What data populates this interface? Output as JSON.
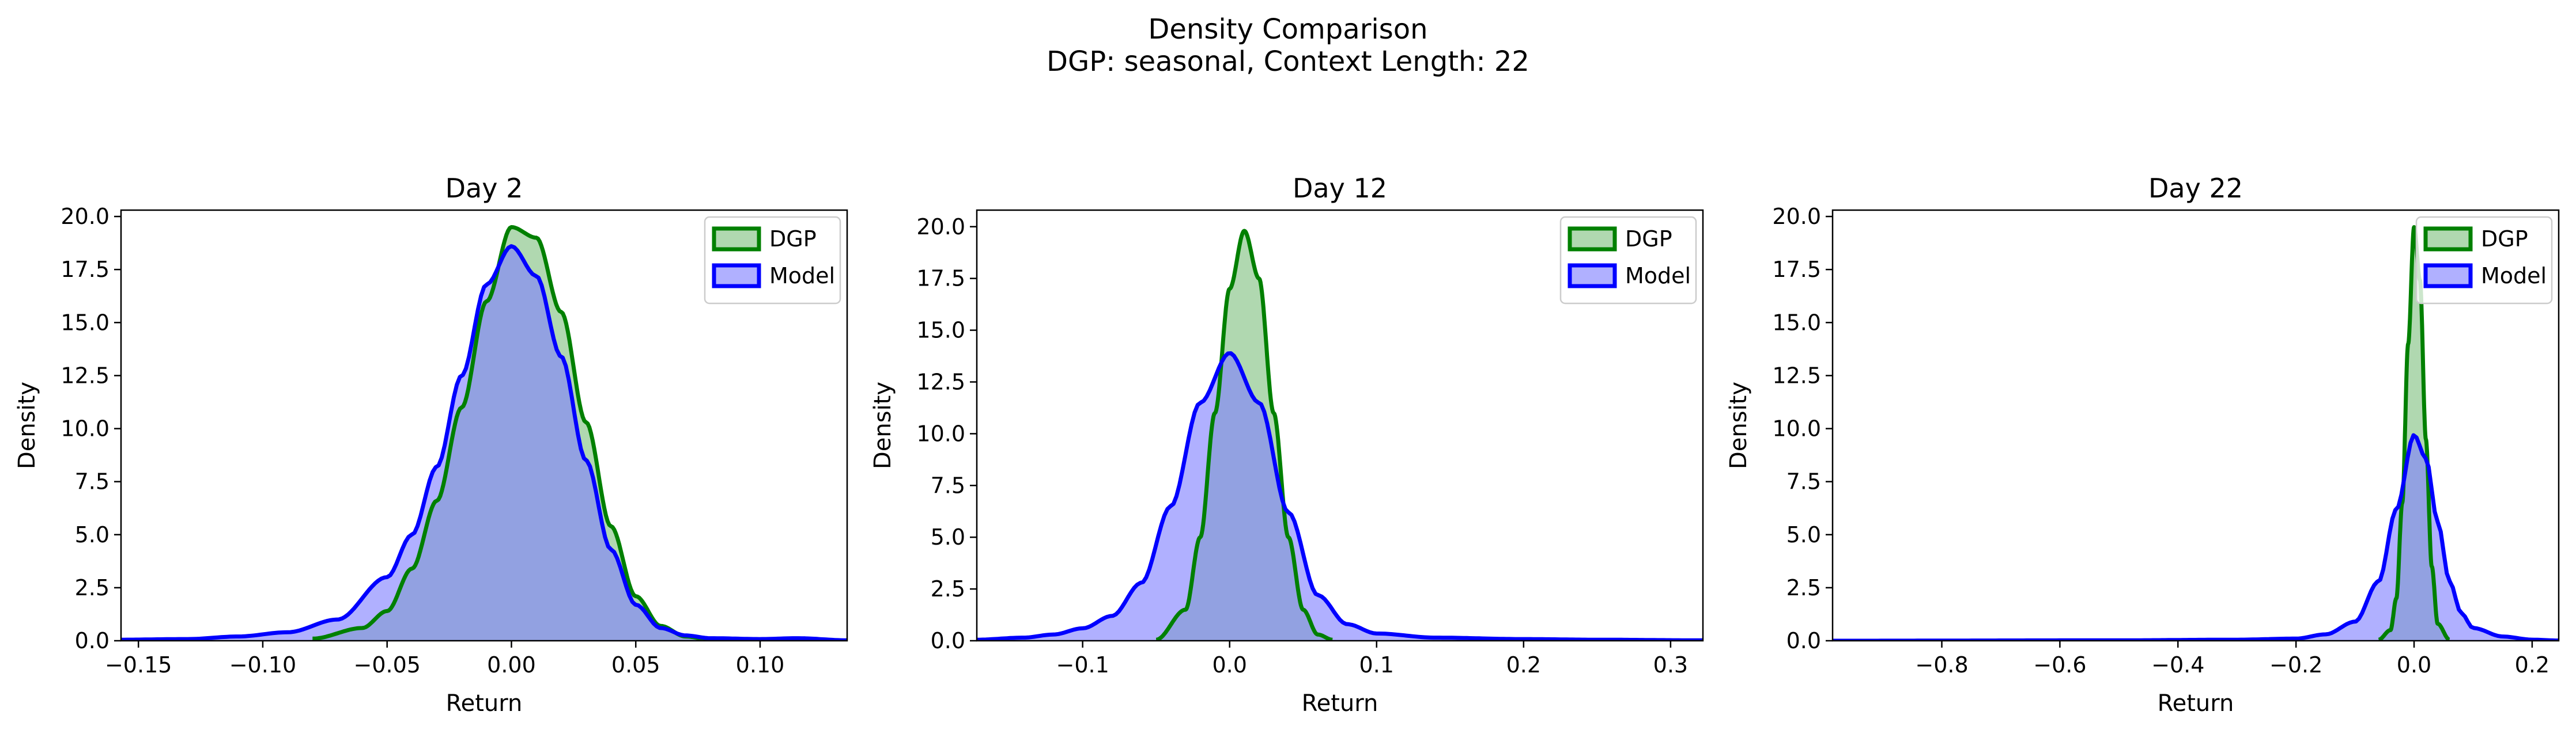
{
  "figure": {
    "title_line1": "Density Comparison",
    "title_line2": "DGP: seasonal, Context Length: 22"
  },
  "colors": {
    "dgp_line": "#008000",
    "dgp_fill": "#80c080",
    "model_line": "#0000ff",
    "model_fill": "#8080ff"
  },
  "chart_data": [
    {
      "type": "area",
      "title": "Day 2",
      "xlabel": "Return",
      "ylabel": "Density",
      "xlim": [
        -0.157,
        0.135
      ],
      "ylim": [
        0,
        20.3
      ],
      "xticks": [
        -0.15,
        -0.1,
        -0.05,
        0.0,
        0.05,
        0.1
      ],
      "xtick_labels": [
        "−0.15",
        "−0.10",
        "−0.05",
        "0.00",
        "0.05",
        "0.10"
      ],
      "yticks": [
        0,
        2.5,
        5,
        7.5,
        10,
        12.5,
        15,
        17.5,
        20
      ],
      "ytick_labels": [
        "0.0",
        "2.5",
        "5.0",
        "7.5",
        "10.0",
        "12.5",
        "15.0",
        "17.5",
        "20.0"
      ],
      "legend": "top-right",
      "series": [
        {
          "name": "DGP",
          "x": [
            -0.08,
            -0.06,
            -0.05,
            -0.04,
            -0.03,
            -0.02,
            -0.01,
            0.0,
            0.01,
            0.02,
            0.03,
            0.04,
            0.05,
            0.06,
            0.07,
            0.08
          ],
          "y": [
            0.1,
            0.6,
            1.4,
            3.4,
            6.6,
            11.0,
            16.0,
            19.5,
            19.0,
            15.5,
            10.3,
            5.4,
            2.1,
            0.7,
            0.2,
            0.05
          ]
        },
        {
          "name": "Model",
          "x": [
            -0.157,
            -0.13,
            -0.11,
            -0.09,
            -0.07,
            -0.05,
            -0.04,
            -0.03,
            -0.02,
            -0.01,
            0.0,
            0.01,
            0.02,
            0.03,
            0.04,
            0.05,
            0.06,
            0.07,
            0.08,
            0.1,
            0.115,
            0.135
          ],
          "y": [
            0.05,
            0.08,
            0.2,
            0.4,
            1.0,
            3.0,
            5.0,
            8.2,
            12.5,
            16.8,
            18.6,
            17.2,
            13.4,
            8.5,
            4.3,
            1.7,
            0.6,
            0.25,
            0.12,
            0.08,
            0.12,
            0.02
          ]
        }
      ]
    },
    {
      "type": "area",
      "title": "Day 12",
      "xlabel": "Return",
      "ylabel": "Density",
      "xlim": [
        -0.172,
        0.322
      ],
      "ylim": [
        0,
        20.8
      ],
      "xticks": [
        -0.1,
        0.0,
        0.1,
        0.2,
        0.3
      ],
      "xtick_labels": [
        "−0.1",
        "0.0",
        "0.1",
        "0.2",
        "0.3"
      ],
      "yticks": [
        0,
        2.5,
        5,
        7.5,
        10,
        12.5,
        15,
        17.5,
        20
      ],
      "ytick_labels": [
        "0.0",
        "2.5",
        "5.0",
        "7.5",
        "10.0",
        "12.5",
        "15.0",
        "17.5",
        "20.0"
      ],
      "legend": "top-right",
      "series": [
        {
          "name": "DGP",
          "x": [
            -0.05,
            -0.03,
            -0.02,
            -0.01,
            0.0,
            0.01,
            0.02,
            0.03,
            0.04,
            0.05,
            0.06,
            0.07
          ],
          "y": [
            0.05,
            1.5,
            5.0,
            11.0,
            17.0,
            19.8,
            17.5,
            11.0,
            5.0,
            1.5,
            0.3,
            0.05
          ]
        },
        {
          "name": "Model",
          "x": [
            -0.172,
            -0.14,
            -0.12,
            -0.1,
            -0.08,
            -0.06,
            -0.04,
            -0.02,
            0.0,
            0.02,
            0.04,
            0.06,
            0.08,
            0.1,
            0.14,
            0.2,
            0.25,
            0.322
          ],
          "y": [
            0.05,
            0.15,
            0.3,
            0.6,
            1.2,
            2.8,
            6.5,
            11.5,
            13.9,
            11.5,
            6.2,
            2.2,
            0.8,
            0.35,
            0.15,
            0.08,
            0.05,
            0.02
          ]
        }
      ]
    },
    {
      "type": "area",
      "title": "Day 22",
      "xlabel": "Return",
      "ylabel": "Density",
      "xlim": [
        -0.985,
        0.245
      ],
      "ylim": [
        0,
        20.3
      ],
      "xticks": [
        -0.8,
        -0.6,
        -0.4,
        -0.2,
        0.0,
        0.2
      ],
      "xtick_labels": [
        "−0.8",
        "−0.6",
        "−0.4",
        "−0.2",
        "0.0",
        "0.2"
      ],
      "yticks": [
        0,
        2.5,
        5,
        7.5,
        10,
        12.5,
        15,
        17.5,
        20
      ],
      "ytick_labels": [
        "0.0",
        "2.5",
        "5.0",
        "7.5",
        "10.0",
        "12.5",
        "15.0",
        "17.5",
        "20.0"
      ],
      "legend": "top-right",
      "series": [
        {
          "name": "DGP",
          "x": [
            -0.06,
            -0.04,
            -0.03,
            -0.02,
            -0.01,
            0.0,
            0.01,
            0.02,
            0.03,
            0.04,
            0.06
          ],
          "y": [
            0.05,
            0.5,
            2.0,
            6.5,
            14.0,
            19.5,
            17.0,
            9.5,
            3.5,
            0.8,
            0.05
          ]
        },
        {
          "name": "Model",
          "x": [
            -0.985,
            -0.5,
            -0.3,
            -0.2,
            -0.15,
            -0.1,
            -0.06,
            -0.03,
            0.0,
            0.02,
            0.04,
            0.06,
            0.08,
            0.1,
            0.15,
            0.2,
            0.245
          ],
          "y": [
            0.0,
            0.02,
            0.05,
            0.1,
            0.3,
            0.9,
            2.8,
            6.2,
            9.7,
            8.6,
            5.6,
            2.8,
            1.3,
            0.6,
            0.2,
            0.05,
            0.01
          ]
        }
      ]
    }
  ]
}
